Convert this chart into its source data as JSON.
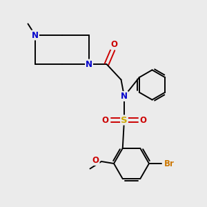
{
  "bg_color": "#ebebeb",
  "atom_colors": {
    "C": "#000000",
    "N": "#0000cc",
    "O": "#cc0000",
    "S": "#ccaa00",
    "Br": "#cc7700",
    "H": "#000000"
  },
  "bond_color": "#000000"
}
